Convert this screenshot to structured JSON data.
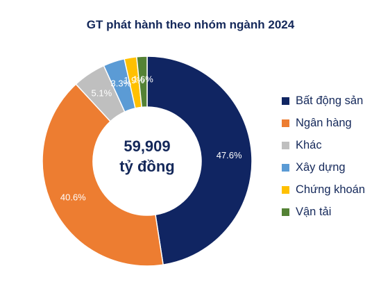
{
  "chart_data": {
    "type": "pie",
    "title": "GT phát hành theo nhóm ngành 2024",
    "center_value": "59,909",
    "center_unit": "tỷ đồng",
    "slices": [
      {
        "name": "Bất động sản",
        "value": 47.6,
        "label": "47.6%",
        "color": "#102562"
      },
      {
        "name": "Ngân hàng",
        "value": 40.6,
        "label": "40.6%",
        "color": "#ed7d31"
      },
      {
        "name": "Khác",
        "value": 5.1,
        "label": "5.1%",
        "color": "#bfbfbf"
      },
      {
        "name": "Xây dựng",
        "value": 3.3,
        "label": "3.3%",
        "color": "#5b9bd5"
      },
      {
        "name": "Chứng khoán",
        "value": 1.9,
        "label": "1.9%",
        "color": "#ffc000"
      },
      {
        "name": "Vận tải",
        "value": 1.6,
        "label": "1.6%",
        "color": "#548235"
      }
    ],
    "legend_position": "right"
  }
}
